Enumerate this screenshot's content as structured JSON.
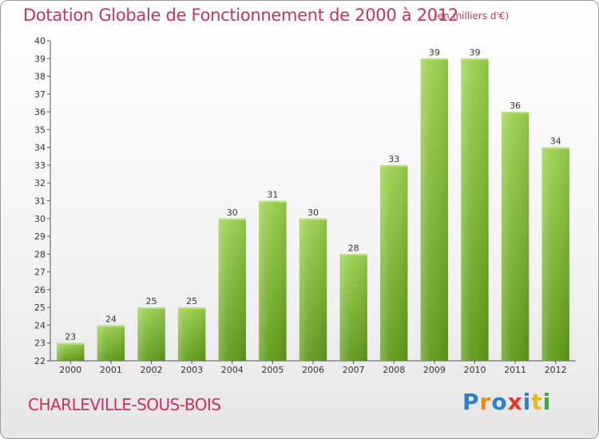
{
  "header": {
    "title": "Dotation Globale de Fonctionnement de 2000 à 2012",
    "subtitle": "(en milliers d'€)"
  },
  "footer": {
    "commune": "CHARLEVILLE-SOUS-BOIS",
    "logo_letters": [
      "P",
      "r",
      "o",
      "x",
      "i",
      "t",
      "i"
    ]
  },
  "chart_data": {
    "type": "bar",
    "title": "Dotation Globale de Fonctionnement de 2000 à 2012",
    "subtitle": "(en milliers d'€)",
    "categories": [
      "2000",
      "2001",
      "2002",
      "2003",
      "2004",
      "2005",
      "2006",
      "2007",
      "2008",
      "2009",
      "2010",
      "2011",
      "2012"
    ],
    "values": [
      23,
      24,
      25,
      25,
      30,
      31,
      30,
      28,
      33,
      39,
      39,
      36,
      34
    ],
    "ylim": [
      22,
      40
    ],
    "ytick_step": 1,
    "grid": false,
    "bar_color_top": "#9bd14e",
    "bar_color_bottom": "#5f9a1a",
    "xlabel": "",
    "ylabel": ""
  }
}
